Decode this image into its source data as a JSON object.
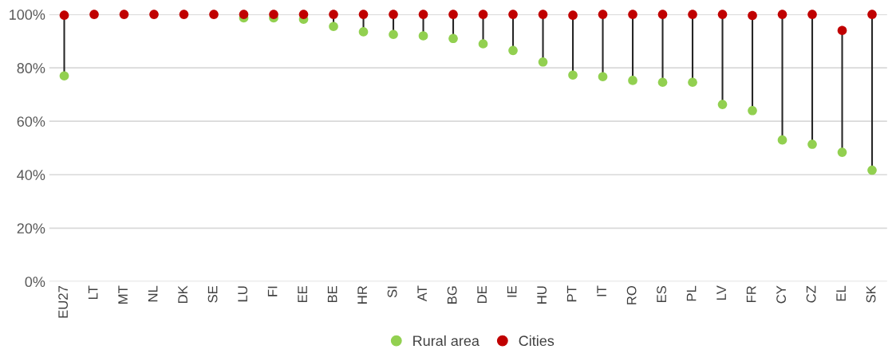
{
  "chart_data": {
    "type": "lollipop",
    "categories": [
      "EU27",
      "LT",
      "MT",
      "NL",
      "DK",
      "SE",
      "LU",
      "FI",
      "EE",
      "BE",
      "HR",
      "SI",
      "AT",
      "BG",
      "DE",
      "IE",
      "HU",
      "PT",
      "IT",
      "RO",
      "ES",
      "PL",
      "LV",
      "FR",
      "CY",
      "CZ",
      "EL",
      "SK"
    ],
    "series": [
      {
        "name": "Rural area",
        "color": "#92d050",
        "values": [
          77,
          null,
          null,
          null,
          null,
          null,
          98.7,
          98.7,
          98.2,
          95.5,
          93.5,
          92.5,
          92,
          91,
          89,
          86.5,
          82.2,
          77.3,
          76.7,
          75.3,
          74.6,
          74.6,
          66.3,
          64,
          53,
          51.4,
          48.4,
          41.7
        ]
      },
      {
        "name": "Cities",
        "color": "#c00000",
        "values": [
          99.7,
          100,
          100,
          100,
          100,
          100,
          100,
          100,
          100,
          100,
          100,
          100,
          100,
          100,
          100,
          100,
          100,
          99.7,
          100,
          100,
          100,
          100,
          100,
          99.6,
          100,
          100,
          94,
          100
        ]
      }
    ],
    "ylim": [
      0,
      100
    ],
    "yticks": [
      {
        "value": 0,
        "label": "0%"
      },
      {
        "value": 20,
        "label": "20%"
      },
      {
        "value": 40,
        "label": "40%"
      },
      {
        "value": 60,
        "label": "60%"
      },
      {
        "value": 80,
        "label": "80%"
      },
      {
        "value": 100,
        "label": "100%"
      }
    ],
    "grid": "y",
    "legend": "bottom",
    "marker": "circle"
  }
}
